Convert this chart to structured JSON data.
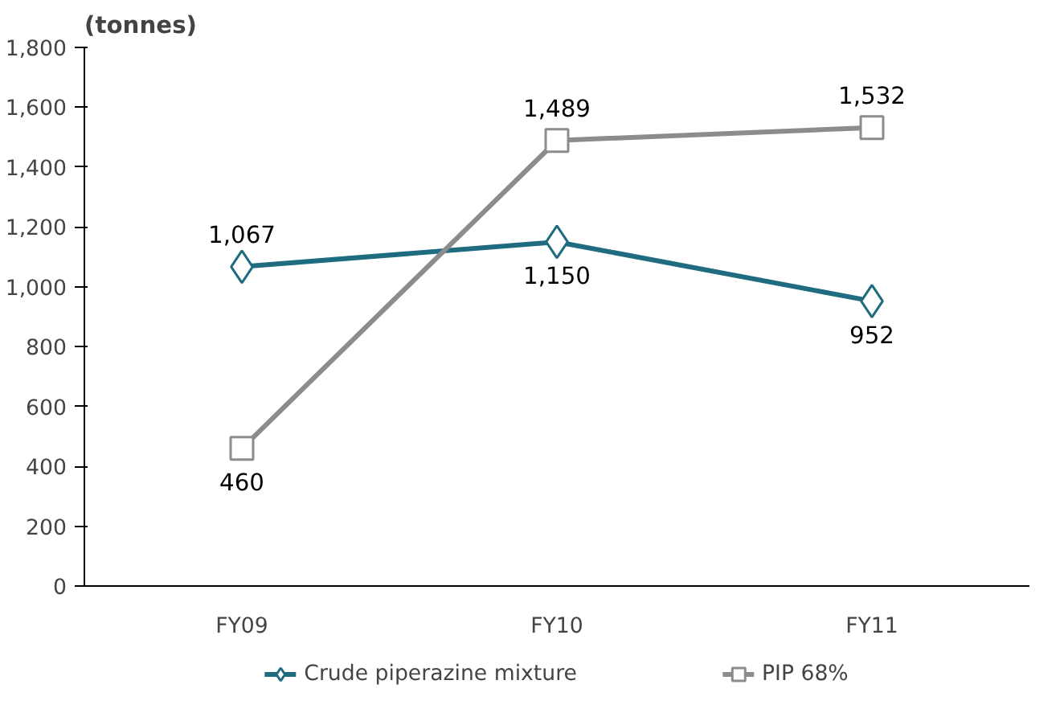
{
  "chart_data": {
    "type": "line",
    "ylabel": "(tonnes)",
    "categories": [
      "FY09",
      "FY10",
      "FY11"
    ],
    "series": [
      {
        "name": "Crude piperazine mixture",
        "color": "#1f6b80",
        "marker": "diamond",
        "values": [
          1067,
          1150,
          952
        ],
        "value_labels": [
          "1,067",
          "1,150",
          "952"
        ]
      },
      {
        "name": "PIP 68%",
        "color": "#8c8c8c",
        "marker": "square",
        "values": [
          460,
          1489,
          1532
        ],
        "value_labels": [
          "460",
          "1,489",
          "1,532"
        ]
      }
    ],
    "ylim": [
      0,
      1800
    ],
    "yticks": [
      0,
      200,
      400,
      600,
      800,
      {
        "value": 1000,
        "label": "1,000"
      },
      {
        "value": 1200,
        "label": "1,200"
      },
      {
        "value": 1400,
        "label": "1,400"
      },
      {
        "value": 1600,
        "label": "1,600"
      },
      {
        "value": 1800,
        "label": "1,800"
      }
    ],
    "grid": false,
    "legend": "bottom"
  }
}
